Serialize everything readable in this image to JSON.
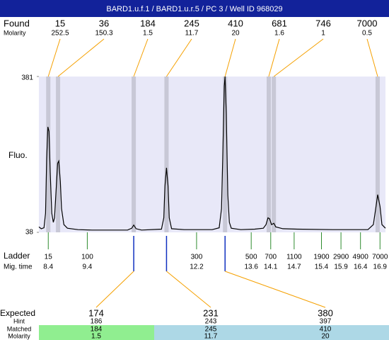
{
  "title": "BARD1.u.f.1 / BARD1.u.r.5 / PC 3 / Well ID 968029",
  "chart_data": {
    "type": "line",
    "y_label": "Fluo.",
    "color": "#000000",
    "ylim": [
      38,
      381
    ],
    "yticks": [
      38,
      381
    ],
    "xlim": [
      8.16,
      17.04
    ],
    "x": [
      8.16,
      8.22,
      8.29,
      8.33,
      8.36,
      8.39,
      8.42,
      8.45,
      8.49,
      8.53,
      8.56,
      8.6,
      8.64,
      8.67,
      8.71,
      8.74,
      8.8,
      8.89,
      9.16,
      9.52,
      10.43,
      10.54,
      10.59,
      10.65,
      10.79,
      11.3,
      11.36,
      11.39,
      11.43,
      11.47,
      11.5,
      11.56,
      11.88,
      12.6,
      12.78,
      12.84,
      12.87,
      12.91,
      12.93,
      12.96,
      13.0,
      13.04,
      13.09,
      13.33,
      13.69,
      13.91,
      13.98,
      14.03,
      14.07,
      14.12,
      14.18,
      14.23,
      14.41,
      14.78,
      15.68,
      16.59,
      16.73,
      16.79,
      16.84,
      16.9,
      16.95,
      17.04
    ],
    "values": [
      50,
      46,
      48,
      80,
      200,
      270,
      260,
      170,
      80,
      60,
      70,
      130,
      190,
      195,
      150,
      90,
      55,
      47,
      44,
      43,
      43,
      47,
      54,
      46,
      43,
      45,
      70,
      140,
      180,
      140,
      70,
      46,
      44,
      44,
      48,
      90,
      200,
      360,
      381,
      300,
      120,
      60,
      47,
      44,
      45,
      47,
      55,
      70,
      68,
      55,
      58,
      50,
      46,
      45,
      44,
      44,
      55,
      90,
      121,
      95,
      55,
      47
    ]
  },
  "found": {
    "label": "Found",
    "molarity_label": "Molarity",
    "peaks": [
      {
        "size": 15,
        "molarity": 252.5,
        "time": 8.4
      },
      {
        "size": 36,
        "molarity": 150.3,
        "time": 8.65
      },
      {
        "size": 184,
        "molarity": 1.5,
        "time": 10.59
      },
      {
        "size": 245,
        "molarity": 11.7,
        "time": 11.43
      },
      {
        "size": 410,
        "molarity": 20,
        "time": 12.93
      },
      {
        "size": 681,
        "molarity": 1.6,
        "time": 14.05
      },
      {
        "size": 746,
        "molarity": 1,
        "time": 14.18
      },
      {
        "size": 7000,
        "molarity": 0.5,
        "time": 16.84
      }
    ]
  },
  "ladder": {
    "label": "Ladder",
    "time_label": "Mig. time",
    "sizes": [
      15,
      100,
      300,
      500,
      700,
      1100,
      1900,
      2900,
      4900,
      7000
    ],
    "times": [
      8.4,
      9.4,
      12.2,
      13.6,
      14.1,
      14.7,
      15.4,
      15.9,
      16.4,
      16.9
    ]
  },
  "expected": {
    "label": "Expected",
    "hint_label": "Hint",
    "matched_label": "Matched",
    "molarity_label": "Molarity",
    "values": [
      174,
      231,
      380
    ],
    "hint": [
      186,
      243,
      397
    ],
    "matched": [
      184,
      245,
      410
    ],
    "molarity": [
      1.5,
      11.7,
      20
    ]
  }
}
